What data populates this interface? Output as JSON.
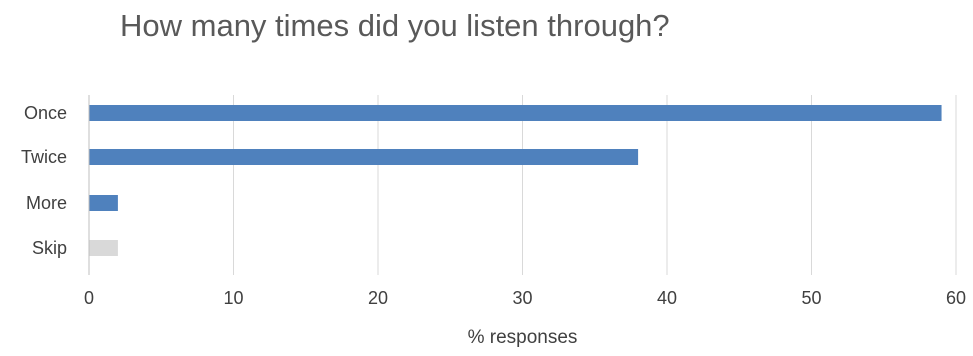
{
  "chart_data": {
    "type": "bar",
    "orientation": "horizontal",
    "title": "How many times did you listen through?",
    "xlabel": "% responses",
    "ylabel": "",
    "categories": [
      "Once",
      "Twice",
      "More",
      "Skip"
    ],
    "values": [
      59,
      38,
      2,
      2
    ],
    "bar_colors": [
      "#4F81BD",
      "#4F81BD",
      "#4F81BD",
      "#D9D9D9"
    ],
    "xlim": [
      0,
      60
    ],
    "xticks": [
      0,
      10,
      20,
      30,
      40,
      50,
      60
    ],
    "grid": "vertical",
    "legend": "none",
    "colors": {
      "title": "#595959",
      "tick_label": "#404040",
      "gridline": "#D9D9D9",
      "axis_line": "#BFBFBF"
    }
  }
}
